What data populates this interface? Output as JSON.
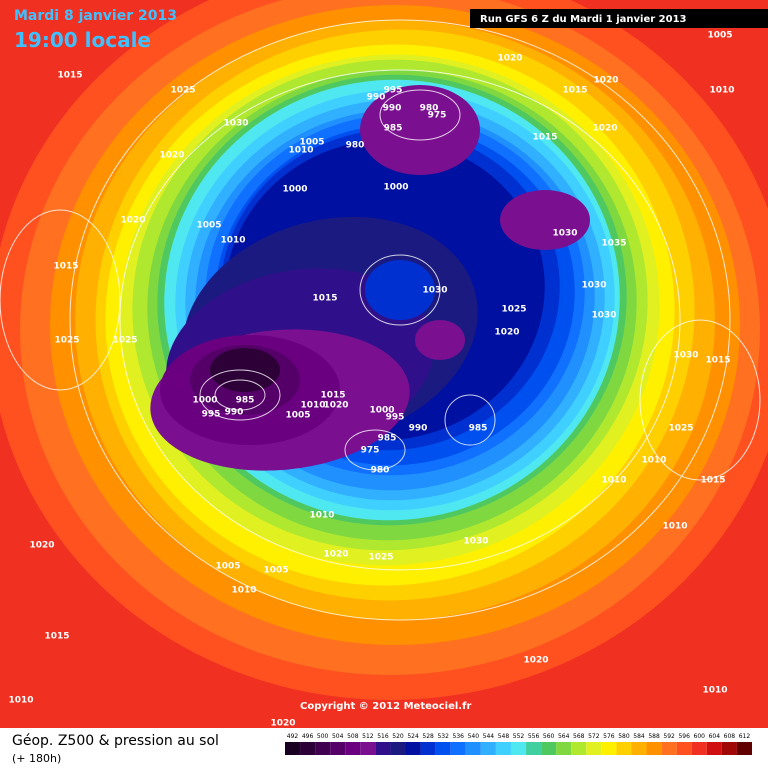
{
  "header": {
    "date": "Mardi 8 janvier 2013",
    "time": "19:00 locale",
    "run": "Run GFS 6 Z du Mardi 1 janvier 2013"
  },
  "isobar_labels": [
    "1005",
    "1020",
    "1015",
    "1025",
    "1020",
    "1015",
    "1010",
    "995",
    "990",
    "990",
    "980",
    "975",
    "1030",
    "985",
    "1015",
    "1020",
    "1005",
    "1010",
    "980",
    "1020",
    "1000",
    "1000",
    "1020",
    "1005",
    "1030",
    "1010",
    "1035",
    "1015",
    "1030",
    "1030",
    "1015",
    "1025",
    "1030",
    "1020",
    "1025",
    "1025",
    "1030",
    "1015",
    "985",
    "1000",
    "990",
    "995",
    "1015",
    "1010",
    "1020",
    "1005",
    "1000",
    "995",
    "990",
    "985",
    "985",
    "975",
    "980",
    "1025",
    "1010",
    "1015",
    "1010",
    "1010",
    "1010",
    "1030",
    "1020",
    "1020",
    "1025",
    "1005",
    "1005",
    "1010",
    "1015",
    "1020",
    "1010",
    "1010",
    "1020"
  ],
  "copyright": "Copyright © 2012 Meteociel.fr",
  "footer": {
    "title": "Géop. Z500 & pression au sol",
    "lead": "(+ 180h)"
  },
  "legend": {
    "values": [
      492,
      496,
      500,
      504,
      508,
      512,
      516,
      520,
      524,
      528,
      532,
      536,
      540,
      544,
      548,
      552,
      556,
      560,
      564,
      568,
      572,
      576,
      580,
      584,
      588,
      592,
      596,
      600,
      604,
      608,
      612
    ],
    "colors": [
      "#1a0020",
      "#2d0038",
      "#40004f",
      "#550068",
      "#6a0080",
      "#7a1090",
      "#30108a",
      "#1a1a80",
      "#0010a0",
      "#0030d0",
      "#0050f0",
      "#1070ff",
      "#2090ff",
      "#30b0ff",
      "#40d0ff",
      "#50e8f0",
      "#40d0a0",
      "#50c860",
      "#80d840",
      "#b0e830",
      "#e0f020",
      "#fff000",
      "#ffd000",
      "#ffb000",
      "#ff9000",
      "#ff7020",
      "#ff5020",
      "#f03020",
      "#d01010",
      "#a00808",
      "#600000"
    ]
  }
}
